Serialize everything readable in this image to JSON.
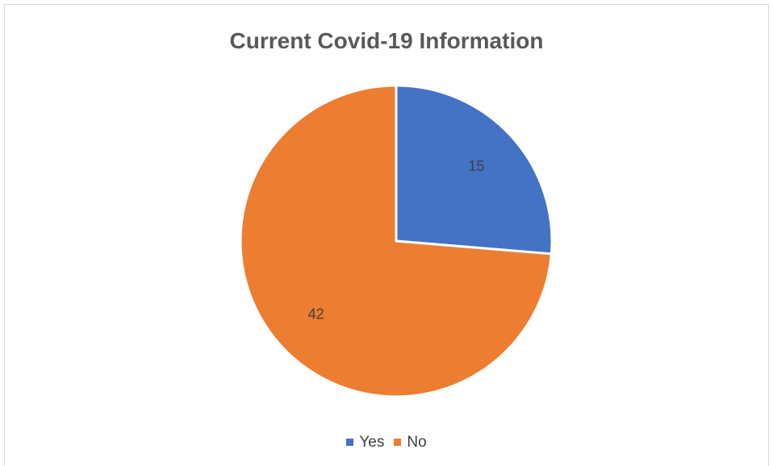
{
  "chart_data": {
    "type": "pie",
    "title": "Current Covid-19 Information",
    "categories": [
      "Yes",
      "No"
    ],
    "values": [
      15,
      42
    ],
    "colors": [
      "#4472c4",
      "#ed7d31"
    ],
    "data_labels": [
      "15",
      "42"
    ],
    "legend_position": "bottom"
  }
}
